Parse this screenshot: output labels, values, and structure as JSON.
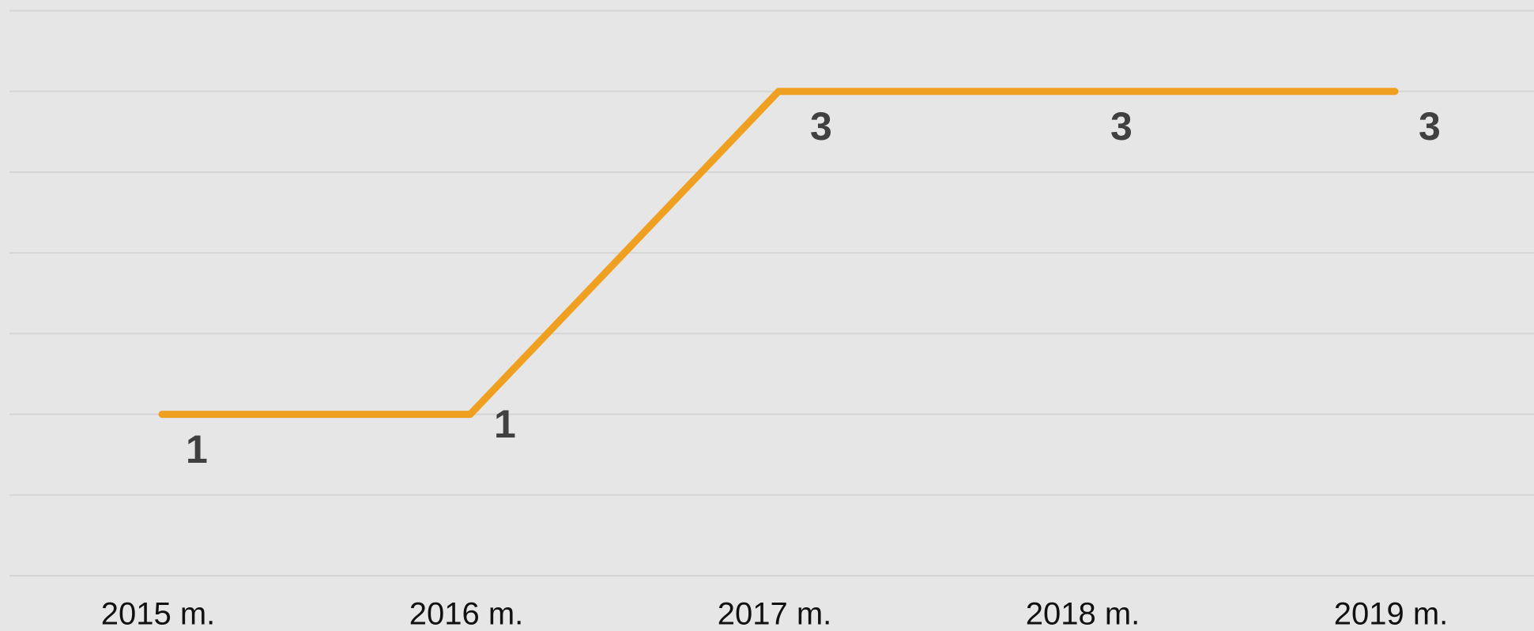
{
  "chart_data": {
    "type": "line",
    "categories": [
      "2015 m.",
      "2016 m.",
      "2017 m.",
      "2018 m.",
      "2019 m."
    ],
    "series": [
      {
        "color": "#f0a020",
        "values": [
          1,
          1,
          3,
          3,
          3
        ]
      }
    ],
    "ylim": [
      0,
      3.5
    ],
    "yticks": [
      0,
      0.5,
      1,
      1.5,
      2,
      2.5,
      3,
      3.5
    ],
    "grid": true
  }
}
